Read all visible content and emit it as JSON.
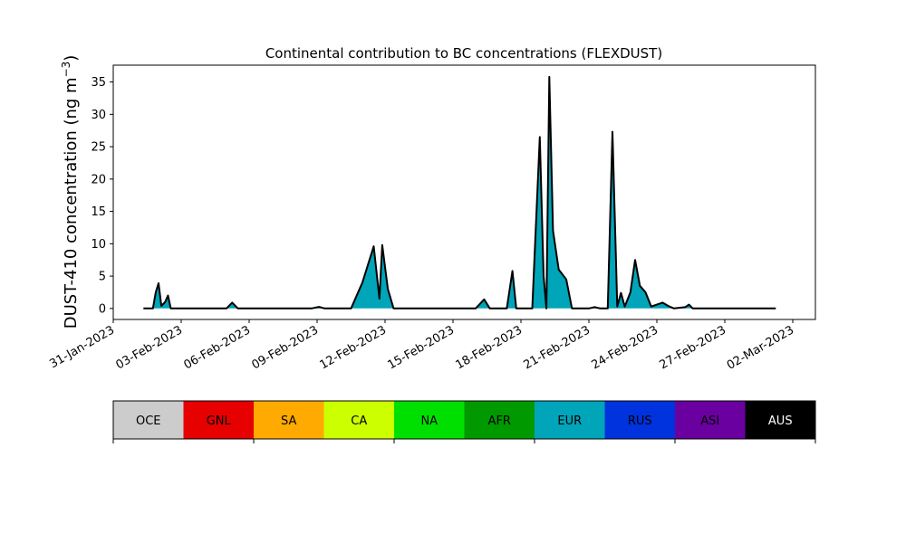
{
  "chart_data": {
    "type": "area",
    "title": "Continental contribution to BC concentrations (FLEXDUST)",
    "ylabel": "DUST-410 concentration (ng m⁻³)",
    "ylabel_parts": {
      "main": "DUST-410 concentration (ng m",
      "sup": "−3",
      "close": ")"
    },
    "xlabel": "",
    "x_start": "2023-01-31",
    "x_end": "2023-03-03",
    "ylim": [
      -1.7,
      37.6
    ],
    "yticks": [
      0,
      5,
      10,
      15,
      20,
      25,
      30,
      35
    ],
    "xticks": [
      {
        "date": "2023-01-31",
        "label": "31-Jan-2023"
      },
      {
        "date": "2023-02-03",
        "label": "03-Feb-2023"
      },
      {
        "date": "2023-02-06",
        "label": "06-Feb-2023"
      },
      {
        "date": "2023-02-09",
        "label": "09-Feb-2023"
      },
      {
        "date": "2023-02-12",
        "label": "12-Feb-2023"
      },
      {
        "date": "2023-02-15",
        "label": "15-Feb-2023"
      },
      {
        "date": "2023-02-18",
        "label": "18-Feb-2023"
      },
      {
        "date": "2023-02-21",
        "label": "21-Feb-2023"
      },
      {
        "date": "2023-02-24",
        "label": "24-Feb-2023"
      },
      {
        "date": "2023-02-27",
        "label": "27-Feb-2023"
      },
      {
        "date": "2023-03-02",
        "label": "02-Mar-2023"
      }
    ],
    "grid": false,
    "series": [
      {
        "name": "EUR",
        "color": "#00a5b9",
        "points": [
          [
            "2023-02-01 08:00",
            0.0
          ],
          [
            "2023-02-01 18:00",
            0.0
          ],
          [
            "2023-02-01 21:00",
            2.5
          ],
          [
            "2023-02-02 00:00",
            3.9
          ],
          [
            "2023-02-02 03:00",
            0.4
          ],
          [
            "2023-02-02 07:00",
            1.0
          ],
          [
            "2023-02-02 10:00",
            2.0
          ],
          [
            "2023-02-02 13:00",
            0.0
          ],
          [
            "2023-02-05 00:00",
            0.0
          ],
          [
            "2023-02-05 06:00",
            0.9
          ],
          [
            "2023-02-05 12:00",
            0.0
          ],
          [
            "2023-02-08 18:00",
            0.0
          ],
          [
            "2023-02-09 02:00",
            0.25
          ],
          [
            "2023-02-09 08:00",
            0.0
          ],
          [
            "2023-02-10 12:00",
            0.0
          ],
          [
            "2023-02-11 00:00",
            4.0
          ],
          [
            "2023-02-11 12:00",
            9.6
          ],
          [
            "2023-02-11 18:00",
            1.5
          ],
          [
            "2023-02-11 21:00",
            9.8
          ],
          [
            "2023-02-12 03:00",
            3.0
          ],
          [
            "2023-02-12 09:00",
            0.0
          ],
          [
            "2023-02-16 00:00",
            0.0
          ],
          [
            "2023-02-16 09:00",
            1.4
          ],
          [
            "2023-02-16 15:00",
            0.0
          ],
          [
            "2023-02-17 09:00",
            0.0
          ],
          [
            "2023-02-17 15:00",
            5.8
          ],
          [
            "2023-02-17 19:00",
            0.0
          ],
          [
            "2023-02-18 12:00",
            0.0
          ],
          [
            "2023-02-18 20:00",
            26.5
          ],
          [
            "2023-02-19 00:00",
            5.0
          ],
          [
            "2023-02-19 03:00",
            0.0
          ],
          [
            "2023-02-19 06:00",
            35.8
          ],
          [
            "2023-02-19 10:00",
            12.0
          ],
          [
            "2023-02-19 16:00",
            6.0
          ],
          [
            "2023-02-20 00:00",
            4.5
          ],
          [
            "2023-02-20 06:00",
            0.0
          ],
          [
            "2023-02-21 00:00",
            0.0
          ],
          [
            "2023-02-21 06:00",
            0.2
          ],
          [
            "2023-02-21 12:00",
            0.0
          ],
          [
            "2023-02-21 20:00",
            0.0
          ],
          [
            "2023-02-22 01:00",
            27.3
          ],
          [
            "2023-02-22 06:00",
            0.3
          ],
          [
            "2023-02-22 10:00",
            2.4
          ],
          [
            "2023-02-22 14:00",
            0.3
          ],
          [
            "2023-02-22 20:00",
            2.5
          ],
          [
            "2023-02-23 01:00",
            7.5
          ],
          [
            "2023-02-23 06:00",
            3.5
          ],
          [
            "2023-02-23 12:00",
            2.5
          ],
          [
            "2023-02-23 18:00",
            0.3
          ],
          [
            "2023-02-24 00:00",
            0.6
          ],
          [
            "2023-02-24 06:00",
            0.9
          ],
          [
            "2023-02-24 12:00",
            0.4
          ],
          [
            "2023-02-24 18:00",
            0.0
          ],
          [
            "2023-02-25 06:00",
            0.2
          ],
          [
            "2023-02-25 10:00",
            0.6
          ],
          [
            "2023-02-25 14:00",
            0.0
          ],
          [
            "2023-03-01 06:00",
            0.0
          ]
        ]
      }
    ],
    "legend": [
      {
        "label": "OCE",
        "color": "#cccccc",
        "text_color": "#000000"
      },
      {
        "label": "GNL",
        "color": "#e60000",
        "text_color": "#000000"
      },
      {
        "label": "SA",
        "color": "#ffaa00",
        "text_color": "#000000"
      },
      {
        "label": "CA",
        "color": "#ccff00",
        "text_color": "#000000"
      },
      {
        "label": "NA",
        "color": "#00e000",
        "text_color": "#000000"
      },
      {
        "label": "AFR",
        "color": "#009a00",
        "text_color": "#000000"
      },
      {
        "label": "EUR",
        "color": "#00a5b9",
        "text_color": "#000000"
      },
      {
        "label": "RUS",
        "color": "#0033dd",
        "text_color": "#000000"
      },
      {
        "label": "ASI",
        "color": "#6a00a0",
        "text_color": "#000000"
      },
      {
        "label": "AUS",
        "color": "#000000",
        "text_color": "#ffffff"
      }
    ],
    "legend_placement": "bottom"
  }
}
